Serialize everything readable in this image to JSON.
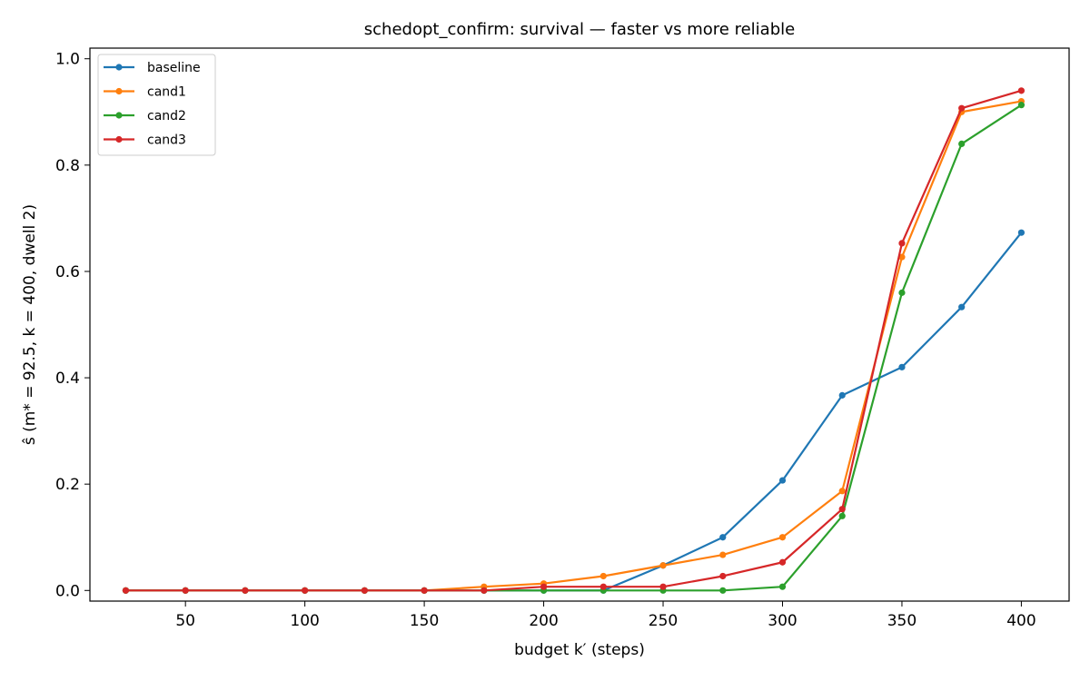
{
  "chart_data": {
    "type": "line",
    "title": "schedopt_confirm: survival — faster vs more reliable",
    "xlabel": "budget k′ (steps)",
    "ylabel": "ŝ (m* = 92.5, k = 400, dwell 2)",
    "xlim": [
      10,
      420
    ],
    "ylim": [
      -0.02,
      1.02
    ],
    "xticks": [
      50,
      100,
      150,
      200,
      250,
      300,
      350,
      400
    ],
    "yticks": [
      0.0,
      0.2,
      0.4,
      0.6,
      0.8,
      1.0
    ],
    "ytick_labels": [
      "0.0",
      "0.2",
      "0.4",
      "0.6",
      "0.8",
      "1.0"
    ],
    "grid": false,
    "legend_position": "top-left",
    "x": [
      25,
      50,
      75,
      100,
      125,
      150,
      175,
      200,
      225,
      250,
      275,
      300,
      325,
      350,
      375,
      400
    ],
    "series": [
      {
        "name": "baseline",
        "color": "#1f77b4",
        "values": [
          0,
          0,
          0,
          0,
          0,
          0,
          0,
          0,
          0,
          0.047,
          0.1,
          0.207,
          0.367,
          0.42,
          0.533,
          0.673
        ]
      },
      {
        "name": "cand1",
        "color": "#ff7f0e",
        "values": [
          0,
          0,
          0,
          0,
          0,
          0,
          0.007,
          0.013,
          0.027,
          0.047,
          0.067,
          0.1,
          0.187,
          0.627,
          0.9,
          0.92
        ]
      },
      {
        "name": "cand2",
        "color": "#2ca02c",
        "values": [
          0,
          0,
          0,
          0,
          0,
          0,
          0,
          0,
          0,
          0,
          0,
          0.007,
          0.14,
          0.56,
          0.84,
          0.913
        ]
      },
      {
        "name": "cand3",
        "color": "#d62728",
        "values": [
          0,
          0,
          0,
          0,
          0,
          0,
          0,
          0.007,
          0.007,
          0.007,
          0.027,
          0.053,
          0.153,
          0.653,
          0.907,
          0.94
        ]
      }
    ]
  }
}
